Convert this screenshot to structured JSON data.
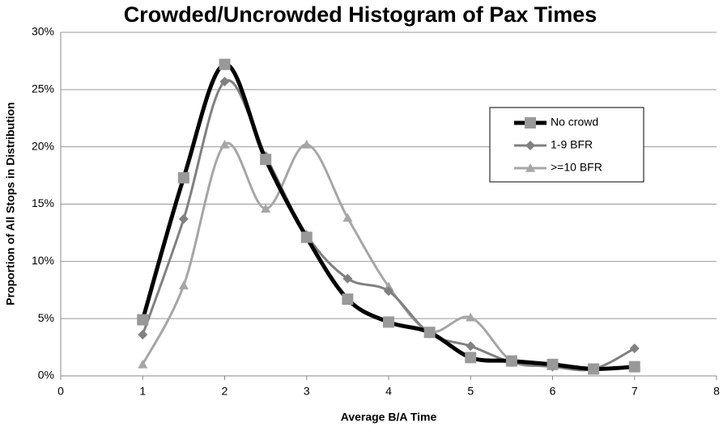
{
  "chart_data": {
    "type": "line",
    "title": "Crowded/Uncrowded Histogram of Pax Times",
    "xlabel": "Average B/A Time",
    "ylabel": "Proportion of All Stops in Distribution",
    "x": [
      1,
      1.5,
      2,
      2.5,
      3,
      3.5,
      4,
      4.5,
      5,
      5.5,
      6,
      6.5,
      7
    ],
    "series": [
      {
        "name": "No crowd",
        "color": "#000000",
        "marker_color": "#999999",
        "marker": "square",
        "values": [
          4.9,
          17.3,
          27.2,
          18.9,
          12.1,
          6.7,
          4.7,
          3.8,
          1.6,
          1.3,
          1.0,
          0.6,
          0.8
        ]
      },
      {
        "name": "1-9 BFR",
        "color": "#808080",
        "marker_color": "#808080",
        "marker": "diamond",
        "values": [
          3.6,
          13.7,
          25.7,
          19.2,
          12.3,
          8.5,
          7.4,
          3.7,
          2.6,
          1.2,
          0.8,
          0.6,
          2.4
        ]
      },
      {
        "name": ">=10 BFR",
        "color": "#a6a6a6",
        "marker_color": "#a6a6a6",
        "marker": "triangle",
        "values": [
          1.0,
          7.9,
          20.2,
          14.6,
          20.2,
          13.8,
          7.8,
          3.9,
          5.1,
          1.3,
          0.9,
          0.6,
          0.7
        ]
      }
    ],
    "xlim": [
      0,
      8
    ],
    "xticks": [
      0,
      1,
      2,
      3,
      4,
      5,
      6,
      7,
      8
    ],
    "ylim": [
      0,
      30
    ],
    "yticks": [
      {
        "value": 0,
        "label": "0%"
      },
      {
        "value": 5,
        "label": "5%"
      },
      {
        "value": 10,
        "label": "10%"
      },
      {
        "value": 15,
        "label": "15%"
      },
      {
        "value": 20,
        "label": "20%"
      },
      {
        "value": 25,
        "label": "25%"
      },
      {
        "value": 30,
        "label": "30%"
      }
    ],
    "grid": true,
    "legend": "upper right",
    "smooth": true
  }
}
